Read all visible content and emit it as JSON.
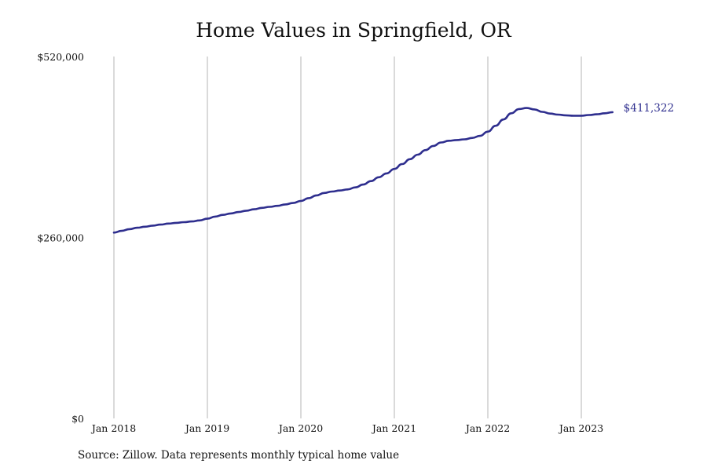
{
  "chart_data": {
    "type": "line",
    "title": "Home Values in Springfield, OR",
    "xlabel": "",
    "ylabel": "",
    "x_ticks": [
      "Jan 2018",
      "Jan 2019",
      "Jan 2020",
      "Jan 2021",
      "Jan 2022",
      "Jan 2023"
    ],
    "y_ticks": [
      "$0",
      "$260,000",
      "$520,000"
    ],
    "ylim": [
      0,
      520000
    ],
    "xlim": [
      "2018-01",
      "2023-12"
    ],
    "grid": "vertical",
    "end_label": "$411,322",
    "line_color": "#2e2e8e",
    "series": [
      {
        "x": [
          "2018-01",
          "2018-02",
          "2018-03",
          "2018-04",
          "2018-05",
          "2018-06",
          "2018-07",
          "2018-08",
          "2018-09",
          "2018-10",
          "2018-11",
          "2018-12",
          "2019-01",
          "2019-02",
          "2019-03",
          "2019-04",
          "2019-05",
          "2019-06",
          "2019-07",
          "2019-08",
          "2019-09",
          "2019-10",
          "2019-11",
          "2019-12",
          "2020-01",
          "2020-02",
          "2020-03",
          "2020-04",
          "2020-05",
          "2020-06",
          "2020-07",
          "2020-08",
          "2020-09",
          "2020-10",
          "2020-11",
          "2020-12",
          "2021-01",
          "2021-02",
          "2021-03",
          "2021-04",
          "2021-05",
          "2021-06",
          "2021-07",
          "2021-08",
          "2021-09",
          "2021-10",
          "2021-11",
          "2021-12",
          "2022-01",
          "2022-02",
          "2022-03",
          "2022-04",
          "2022-05",
          "2022-06",
          "2022-07",
          "2022-08",
          "2022-09",
          "2022-10",
          "2022-11",
          "2022-12",
          "2023-01",
          "2023-02",
          "2023-03",
          "2023-04",
          "2023-05"
        ],
        "values": [
          267000,
          269500,
          272000,
          274000,
          275500,
          277000,
          278500,
          280000,
          281000,
          282000,
          283000,
          284500,
          287000,
          290000,
          292500,
          294500,
          296500,
          298500,
          300500,
          302500,
          304000,
          305500,
          307500,
          309500,
          312500,
          316500,
          320500,
          324000,
          326000,
          327500,
          329000,
          332000,
          336000,
          341000,
          346500,
          352000,
          358500,
          365500,
          372500,
          379000,
          385500,
          391500,
          396500,
          399000,
          400000,
          401000,
          403000,
          406000,
          412000,
          420500,
          429500,
          438500,
          444500,
          446000,
          444000,
          440500,
          438000,
          436500,
          435500,
          435000,
          435000,
          436000,
          437000,
          438500,
          411322
        ]
      }
    ]
  },
  "source_note": "Source: Zillow. Data represents monthly typical home value"
}
